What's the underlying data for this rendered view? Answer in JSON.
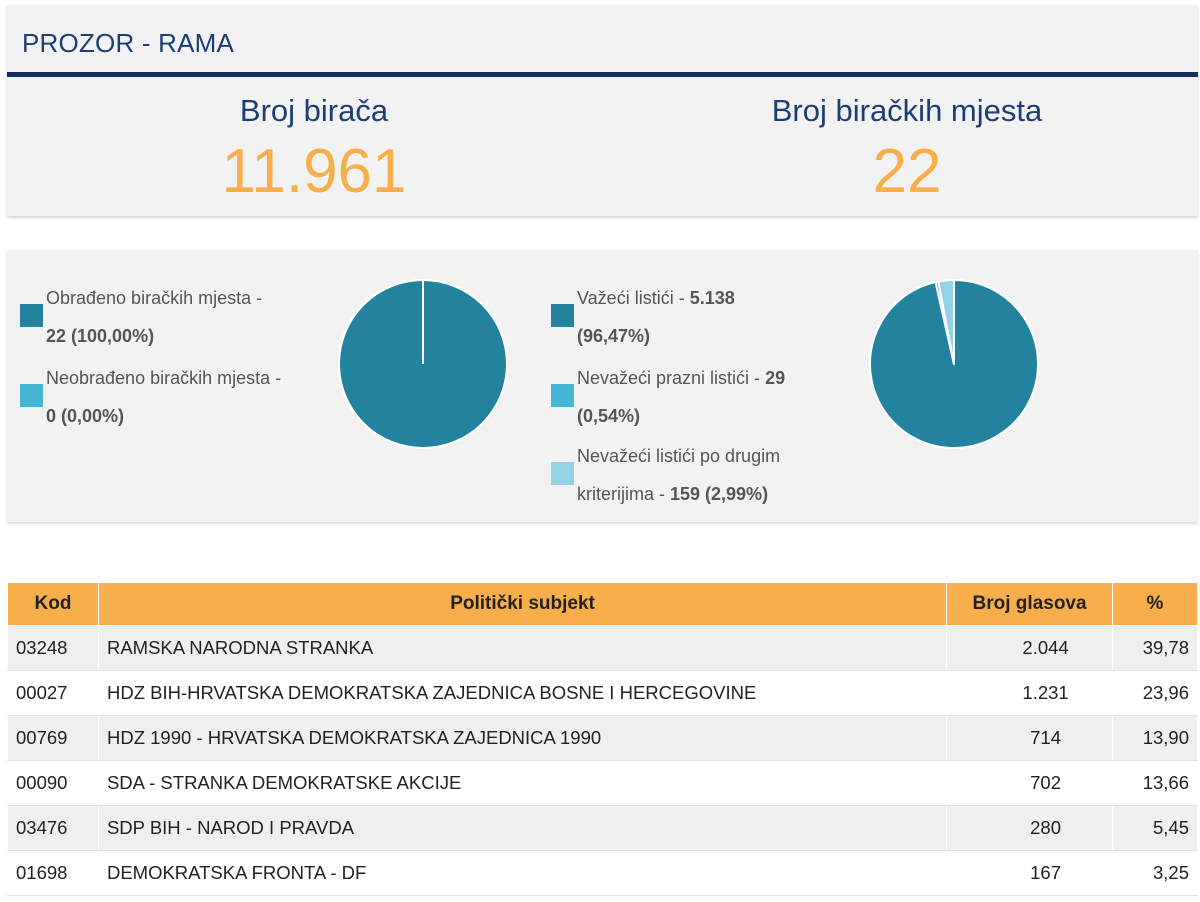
{
  "header": {
    "title": "PROZOR - RAMA",
    "stats": [
      {
        "label": "Broj birača",
        "value": "11.961"
      },
      {
        "label": "Broj biračkih mjesta",
        "value": "22"
      }
    ]
  },
  "colors": {
    "dark_teal": "#23829e",
    "light_blue": "#46b5d6",
    "pale_blue": "#93d2e7",
    "orange": "#f7ae4b",
    "navy": "#1c3f73"
  },
  "left_legend": [
    {
      "text": "Obrađeno biračkih mjesta - ",
      "bold": "22 (100,00%)"
    },
    {
      "text": "Neobrađeno biračkih mjesta - ",
      "bold": "0 (0,00%)"
    }
  ],
  "right_legend": [
    {
      "text": "Važeći listići - ",
      "bold": "5.138",
      "text2": "",
      "bold2": "(96,47%)"
    },
    {
      "text": "Nevažeći prazni listići - ",
      "bold": "29",
      "text2": "",
      "bold2": "(0,54%)"
    },
    {
      "text": "Nevažeći listići po drugim",
      "bold": "",
      "text2": "kriterijima - ",
      "bold2": "159 (2,99%)"
    }
  ],
  "chart_data": [
    {
      "type": "pie",
      "labels": [
        "Obrađeno biračkih mjesta",
        "Neobrađeno biračkih mjesta"
      ],
      "values": [
        100.0,
        0.0
      ],
      "colors": [
        "#23829e",
        "#46b5d6"
      ]
    },
    {
      "type": "pie",
      "labels": [
        "Važeći listići",
        "Nevažeći prazni listići",
        "Nevažeći listići po drugim kriterijima"
      ],
      "values": [
        96.47,
        0.54,
        2.99
      ],
      "colors": [
        "#23829e",
        "#46b5d6",
        "#93d2e7"
      ]
    }
  ],
  "table": {
    "columns": [
      "Kod",
      "Politički subjekt",
      "Broj glasova",
      "%"
    ],
    "rows": [
      [
        "03248",
        "RAMSKA NARODNA STRANKA",
        "2.044",
        "39,78"
      ],
      [
        "00027",
        "HDZ BIH-HRVATSKA DEMOKRATSKA ZAJEDNICA BOSNE I HERCEGOVINE",
        "1.231",
        "23,96"
      ],
      [
        "00769",
        "HDZ 1990 - HRVATSKA DEMOKRATSKA ZAJEDNICA 1990",
        "714",
        "13,90"
      ],
      [
        "00090",
        "SDA - STRANKA DEMOKRATSKE AKCIJE",
        "702",
        "13,66"
      ],
      [
        "03476",
        "SDP BIH - NAROD I PRAVDA",
        "280",
        "5,45"
      ],
      [
        "01698",
        "DEMOKRATSKA FRONTA - DF",
        "167",
        "3,25"
      ]
    ]
  }
}
